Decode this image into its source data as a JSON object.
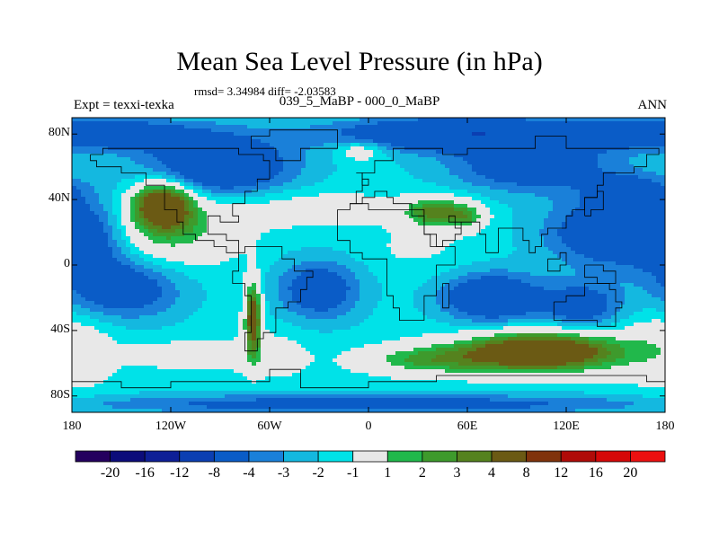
{
  "title": "Mean Sea Level Pressure (in hPa)",
  "stats": "rmsd= 3.34984 diff= -2.03583",
  "experiment": "Expt = texxi-texka",
  "subtitle": "039_5_MaBP - 000_0_MaBP",
  "season": "ANN",
  "lat_ticks": [
    {
      "label": "80N",
      "lat": 80
    },
    {
      "label": "40N",
      "lat": 40
    },
    {
      "label": "0",
      "lat": 0
    },
    {
      "label": "40S",
      "lat": -40
    },
    {
      "label": "80S",
      "lat": -80
    }
  ],
  "lon_ticks": [
    {
      "label": "180",
      "lon": -180
    },
    {
      "label": "120W",
      "lon": -120
    },
    {
      "label": "60W",
      "lon": -60
    },
    {
      "label": "0",
      "lon": 0
    },
    {
      "label": "60E",
      "lon": 60
    },
    {
      "label": "120E",
      "lon": 120
    },
    {
      "label": "180",
      "lon": 180
    }
  ],
  "colorbar": {
    "labels": [
      "-20",
      "-16",
      "-12",
      "-8",
      "-4",
      "-3",
      "-2",
      "-1",
      "1",
      "2",
      "3",
      "4",
      "8",
      "12",
      "16",
      "20"
    ],
    "colors": [
      "#24005e",
      "#0c0c7a",
      "#0e1f96",
      "#0b3fb2",
      "#0a5cc7",
      "#1a80d9",
      "#14b8e0",
      "#00e2e8",
      "#e8e8e8",
      "#21b84b",
      "#3e9a2c",
      "#55821e",
      "#6b5a14",
      "#80330c",
      "#b00b08",
      "#d50808",
      "#ec1010"
    ],
    "thresholds": [
      -20,
      -16,
      -12,
      -8,
      -4,
      -3,
      -2,
      -1,
      1,
      2,
      3,
      4,
      8,
      12,
      16,
      20
    ]
  },
  "field_features": [
    {
      "lon": -125,
      "lat": 37,
      "rx": 18,
      "ry": 14,
      "amp": 8
    },
    {
      "lon": -70,
      "lat": -32,
      "rx": 5,
      "ry": 22,
      "amp": 7
    },
    {
      "lon": -110,
      "lat": -55,
      "rx": 30,
      "ry": 7,
      "amp": 2.5
    },
    {
      "lon": 35,
      "lat": -58,
      "rx": 40,
      "ry": 9,
      "amp": 3.5
    },
    {
      "lon": 105,
      "lat": -53,
      "rx": 48,
      "ry": 12,
      "amp": 9
    },
    {
      "lon": 40,
      "lat": 32,
      "rx": 18,
      "ry": 9,
      "amp": 5
    },
    {
      "lon": 60,
      "lat": 30,
      "rx": 12,
      "ry": 8,
      "amp": 3
    },
    {
      "lon": -5,
      "lat": 70,
      "rx": 15,
      "ry": 6,
      "amp": 2.5
    },
    {
      "lon": -120,
      "lat": 20,
      "rx": 40,
      "ry": 20,
      "amp": 3
    },
    {
      "lon": -40,
      "lat": 35,
      "rx": 60,
      "ry": 12,
      "amp": 1.5
    },
    {
      "lon": 30,
      "lat": 10,
      "rx": 35,
      "ry": 14,
      "amp": 0.8
    },
    {
      "lon": 180,
      "lat": -55,
      "rx": 30,
      "ry": 25,
      "amp": 0.9
    },
    {
      "lon": -180,
      "lat": -45,
      "rx": 25,
      "ry": 25,
      "amp": 0.9
    },
    {
      "lon": -60,
      "lat": -55,
      "rx": 25,
      "ry": 15,
      "amp": 1.4
    },
    {
      "lon": -160,
      "lat": 80,
      "rx": 60,
      "ry": 10,
      "amp": -4
    },
    {
      "lon": 60,
      "lat": 80,
      "rx": 80,
      "ry": 10,
      "amp": -6
    },
    {
      "lon": 100,
      "lat": 60,
      "rx": 50,
      "ry": 15,
      "amp": -4
    },
    {
      "lon": -90,
      "lat": 60,
      "rx": 45,
      "ry": 18,
      "amp": -5
    },
    {
      "lon": -170,
      "lat": 15,
      "rx": 25,
      "ry": 25,
      "amp": -3
    },
    {
      "lon": -150,
      "lat": -15,
      "rx": 35,
      "ry": 18,
      "amp": -4
    },
    {
      "lon": -30,
      "lat": -15,
      "rx": 25,
      "ry": 18,
      "amp": -4
    },
    {
      "lon": 75,
      "lat": -20,
      "rx": 30,
      "ry": 15,
      "amp": -5
    },
    {
      "lon": 150,
      "lat": 20,
      "rx": 40,
      "ry": 20,
      "amp": -5
    },
    {
      "lon": 130,
      "lat": -25,
      "rx": 25,
      "ry": 15,
      "amp": -3.5
    },
    {
      "lon": 0,
      "lat": -85,
      "rx": 180,
      "ry": 6,
      "amp": -3.5
    },
    {
      "lon": 160,
      "lat": 45,
      "rx": 25,
      "ry": 10,
      "amp": -3
    }
  ]
}
